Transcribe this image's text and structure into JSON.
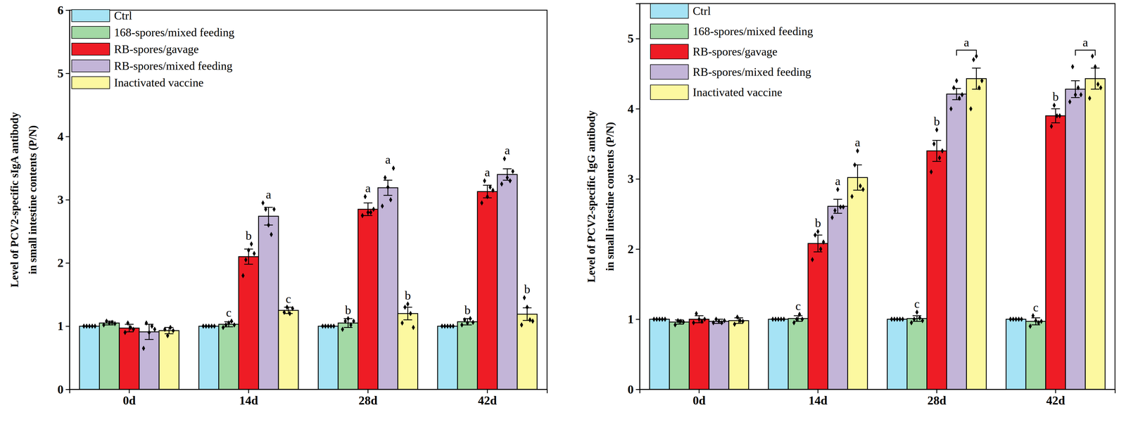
{
  "chart_data": [
    {
      "type": "bar",
      "y_label": [
        "Level of PCV2-specific sIgA antibody",
        "in small intestine contents (P/N)"
      ],
      "categories": [
        "0d",
        "14d",
        "28d",
        "42d"
      ],
      "ylim": [
        0,
        6
      ],
      "yticks": [
        0,
        1,
        2,
        3,
        4,
        5,
        6
      ],
      "legend": "upper left",
      "series": [
        {
          "name": "Ctrl",
          "color": "#a6e3f5",
          "values": [
            1.0,
            1.0,
            1.0,
            1.0
          ],
          "errors": [
            0,
            0,
            0,
            0
          ],
          "points": [
            [
              1,
              1,
              1,
              1,
              1
            ],
            [
              1,
              1,
              1,
              1,
              1
            ],
            [
              1,
              1,
              1,
              1,
              1
            ],
            [
              1,
              1,
              1,
              1,
              1
            ]
          ]
        },
        {
          "name": "168-spores/mixed feeding",
          "color": "#a3d9a5",
          "values": [
            1.05,
            1.03,
            1.05,
            1.07
          ],
          "errors": [
            0.03,
            0.04,
            0.07,
            0.05
          ],
          "points": [
            [
              1.02,
              1.08,
              1.05,
              1.06,
              1.04
            ],
            [
              0.98,
              1.02,
              1.05,
              1.08,
              1.02
            ],
            [
              0.95,
              1.08,
              1.12,
              1.02,
              1.08
            ],
            [
              1.02,
              1.1,
              1.05,
              1.12,
              1.06
            ]
          ]
        },
        {
          "name": "RB-spores/gavage",
          "color": "#ee1c25",
          "values": [
            0.97,
            2.1,
            2.85,
            3.13
          ],
          "errors": [
            0.06,
            0.12,
            0.1,
            0.1
          ],
          "points": [
            [
              0.9,
              1.05,
              0.98,
              0.95
            ],
            [
              1.8,
              2.05,
              2.2,
              2.3,
              2.15
            ],
            [
              2.75,
              3.05,
              2.8,
              2.8,
              2.85
            ],
            [
              2.95,
              3.3,
              3.05,
              3.2,
              3.15
            ]
          ]
        },
        {
          "name": "RB-spores/mixed feeding",
          "color": "#c3b5d8",
          "values": [
            0.91,
            2.74,
            3.19,
            3.4
          ],
          "errors": [
            0.12,
            0.14,
            0.12,
            0.09
          ],
          "points": [
            [
              0.65,
              1.05,
              0.9,
              1.0,
              0.95
            ],
            [
              2.95,
              2.85,
              2.6,
              2.45,
              2.85
            ],
            [
              2.9,
              3.35,
              3.2,
              3.0,
              3.5
            ],
            [
              3.25,
              3.65,
              3.35,
              3.3,
              3.45
            ]
          ]
        },
        {
          "name": "Inactivated vaccine",
          "color": "#fcf8a0",
          "values": [
            0.93,
            1.25,
            1.2,
            1.19
          ],
          "errors": [
            0.05,
            0.05,
            0.1,
            0.1
          ],
          "points": [
            [
              0.95,
              0.85,
              0.98,
              0.93
            ],
            [
              1.22,
              1.3,
              1.2,
              1.28
            ],
            [
              1.05,
              1.3,
              1.35,
              1.2,
              0.98
            ],
            [
              1.02,
              1.45,
              1.3,
              1.1,
              1.08
            ]
          ]
        }
      ],
      "annotations": [
        {
          "text": "c",
          "category": "14d",
          "series": [
            "168-spores/mixed feeding"
          ]
        },
        {
          "text": "b",
          "category": "14d",
          "series": [
            "RB-spores/gavage"
          ]
        },
        {
          "text": "a",
          "category": "14d",
          "series": [
            "RB-spores/mixed feeding"
          ]
        },
        {
          "text": "c",
          "category": "14d",
          "series": [
            "Inactivated vaccine"
          ]
        },
        {
          "text": "b",
          "category": "28d",
          "series": [
            "168-spores/mixed feeding"
          ]
        },
        {
          "text": "a",
          "category": "28d",
          "series": [
            "RB-spores/gavage"
          ]
        },
        {
          "text": "a",
          "category": "28d",
          "series": [
            "RB-spores/mixed feeding"
          ]
        },
        {
          "text": "b",
          "category": "28d",
          "series": [
            "Inactivated vaccine"
          ]
        },
        {
          "text": "b",
          "category": "42d",
          "series": [
            "168-spores/mixed feeding"
          ]
        },
        {
          "text": "a",
          "category": "42d",
          "series": [
            "RB-spores/gavage"
          ]
        },
        {
          "text": "a",
          "category": "42d",
          "series": [
            "RB-spores/mixed feeding"
          ]
        },
        {
          "text": "b",
          "category": "42d",
          "series": [
            "Inactivated vaccine"
          ]
        }
      ]
    },
    {
      "type": "bar",
      "y_label": [
        "Level of PCV2-specific IgG antibody",
        "in small intestine contents (P/N)"
      ],
      "categories": [
        "0d",
        "14d",
        "28d",
        "42d"
      ],
      "ylim": [
        0,
        5.5
      ],
      "yticks": [
        0,
        1,
        2,
        3,
        4,
        5
      ],
      "legend": "upper left",
      "series": [
        {
          "name": "Ctrl",
          "color": "#a6e3f5",
          "values": [
            1.0,
            1.0,
            1.0,
            1.0
          ],
          "errors": [
            0,
            0,
            0,
            0
          ],
          "points": [
            [
              1,
              1,
              1,
              1,
              1
            ],
            [
              1,
              1,
              1,
              1,
              1
            ],
            [
              1,
              1,
              1,
              1,
              1
            ],
            [
              1,
              1,
              1,
              1,
              1
            ]
          ]
        },
        {
          "name": "168-spores/mixed feeding",
          "color": "#a3d9a5",
          "values": [
            0.96,
            1.01,
            1.01,
            0.97
          ],
          "errors": [
            0.03,
            0.04,
            0.04,
            0.05
          ],
          "points": [
            [
              0.92,
              0.98,
              0.97,
              0.96
            ],
            [
              0.95,
              1.0,
              1.07,
              1.0
            ],
            [
              0.95,
              1.0,
              1.1,
              1.02,
              0.98
            ],
            [
              0.9,
              1.05,
              0.98,
              0.95,
              0.97
            ]
          ]
        },
        {
          "name": "RB-spores/gavage",
          "color": "#ee1c25",
          "values": [
            1.0,
            2.08,
            3.4,
            3.9
          ],
          "errors": [
            0.05,
            0.12,
            0.15,
            0.1
          ],
          "points": [
            [
              0.95,
              1.08,
              1.0,
              0.97,
              1.0
            ],
            [
              1.85,
              2.2,
              2.25,
              2.0,
              2.1
            ],
            [
              3.1,
              3.5,
              3.7,
              3.3,
              3.4
            ],
            [
              3.75,
              4.05,
              3.9,
              3.9
            ]
          ]
        },
        {
          "name": "RB-spores/mixed feeding",
          "color": "#c3b5d8",
          "values": [
            0.97,
            2.61,
            4.21,
            4.28
          ],
          "errors": [
            0.03,
            0.1,
            0.08,
            0.12
          ],
          "points": [
            [
              0.95,
              1.0,
              0.97,
              0.95,
              0.98
            ],
            [
              2.45,
              2.55,
              2.85,
              2.6,
              2.6
            ],
            [
              4.0,
              4.3,
              4.4,
              4.15,
              4.2
            ],
            [
              4.1,
              4.6,
              4.2,
              4.3,
              4.2
            ]
          ]
        },
        {
          "name": "Inactivated vaccine",
          "color": "#fcf8a0",
          "values": [
            0.98,
            3.02,
            4.43,
            4.43
          ],
          "errors": [
            0.04,
            0.18,
            0.15,
            0.15
          ],
          "points": [
            [
              0.93,
              1.03,
              0.98,
              0.97
            ],
            [
              2.75,
              3.2,
              3.4,
              2.9,
              2.85
            ],
            [
              4.0,
              4.7,
              4.75,
              4.3,
              4.4
            ],
            [
              4.15,
              4.75,
              4.6,
              4.35,
              4.3
            ]
          ]
        }
      ],
      "annotations": [
        {
          "text": "c",
          "category": "14d",
          "series": [
            "168-spores/mixed feeding"
          ]
        },
        {
          "text": "b",
          "category": "14d",
          "series": [
            "RB-spores/gavage"
          ]
        },
        {
          "text": "a",
          "category": "14d",
          "series": [
            "RB-spores/mixed feeding"
          ]
        },
        {
          "text": "a",
          "category": "14d",
          "series": [
            "Inactivated vaccine"
          ]
        },
        {
          "text": "c",
          "category": "28d",
          "series": [
            "168-spores/mixed feeding"
          ]
        },
        {
          "text": "b",
          "category": "28d",
          "series": [
            "RB-spores/gavage"
          ]
        },
        {
          "text": "a",
          "category": "28d",
          "series": [
            "RB-spores/mixed feeding",
            "Inactivated vaccine"
          ]
        },
        {
          "text": "c",
          "category": "42d",
          "series": [
            "168-spores/mixed feeding"
          ]
        },
        {
          "text": "b",
          "category": "42d",
          "series": [
            "RB-spores/gavage"
          ]
        },
        {
          "text": "a",
          "category": "42d",
          "series": [
            "RB-spores/mixed feeding",
            "Inactivated vaccine"
          ]
        }
      ]
    }
  ]
}
